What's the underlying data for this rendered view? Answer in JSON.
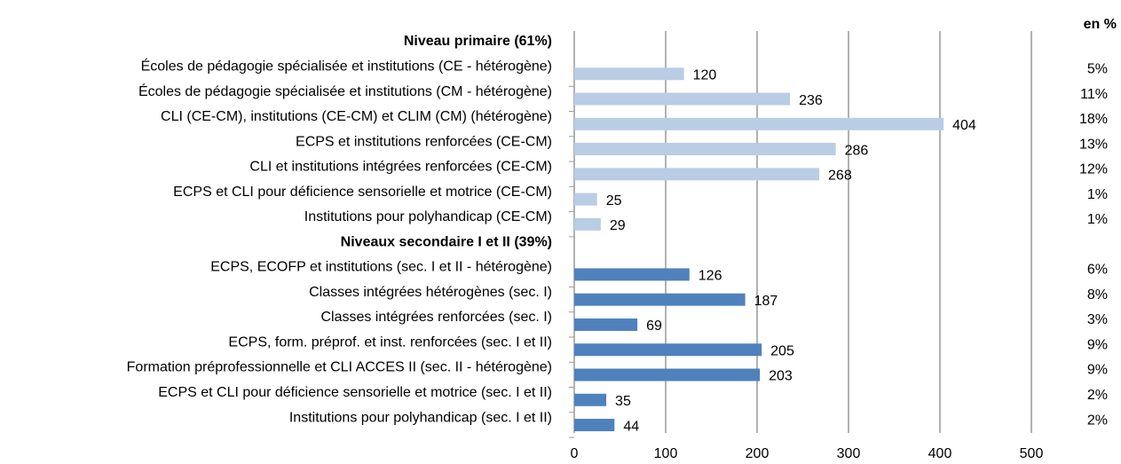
{
  "chart_data": {
    "type": "bar",
    "unit_label": "en %",
    "xlim": [
      0,
      500
    ],
    "xticks": [
      0,
      100,
      200,
      300,
      400,
      500
    ],
    "grid": true,
    "groups": [
      {
        "title": "Niveau primaire (61%)",
        "color": "#b9cde5",
        "categories": [
          "Écoles de pédagogie spécialisée et institutions (CE - hétérogène)",
          "Écoles de pédagogie spécialisée et institutions (CM - hétérogène)",
          "CLI (CE-CM), institutions (CE-CM) et CLIM (CM) (hétérogène)",
          "ECPS et institutions renforcées (CE-CM)",
          "CLI et institutions intégrées renforcées (CE-CM)",
          "ECPS et CLI pour déficience sensorielle et motrice (CE-CM)",
          "Institutions pour polyhandicap (CE-CM)"
        ],
        "values": [
          120,
          236,
          404,
          286,
          268,
          25,
          29
        ],
        "shares": [
          "5%",
          "11%",
          "18%",
          "13%",
          "12%",
          "1%",
          "1%"
        ]
      },
      {
        "title": "Niveaux secondaire I et II (39%)",
        "color": "#4f81bd",
        "categories": [
          "ECPS, ECOFP et institutions (sec. I et II - hétérogène)",
          "Classes intégrées hétérogènes (sec. I)",
          "Classes intégrées renforcées (sec. I)",
          "ECPS, form. préprof. et inst. renforcées (sec. I et II)",
          "Formation préprofessionnelle et CLI ACCES II (sec. II - hétérogène)",
          "ECPS et CLI pour déficience sensorielle et motrice (sec. I et II)",
          "Institutions pour polyhandicap (sec. I et II)"
        ],
        "values": [
          126,
          187,
          69,
          205,
          203,
          35,
          44
        ],
        "shares": [
          "6%",
          "8%",
          "3%",
          "9%",
          "9%",
          "2%",
          "2%"
        ]
      }
    ]
  }
}
